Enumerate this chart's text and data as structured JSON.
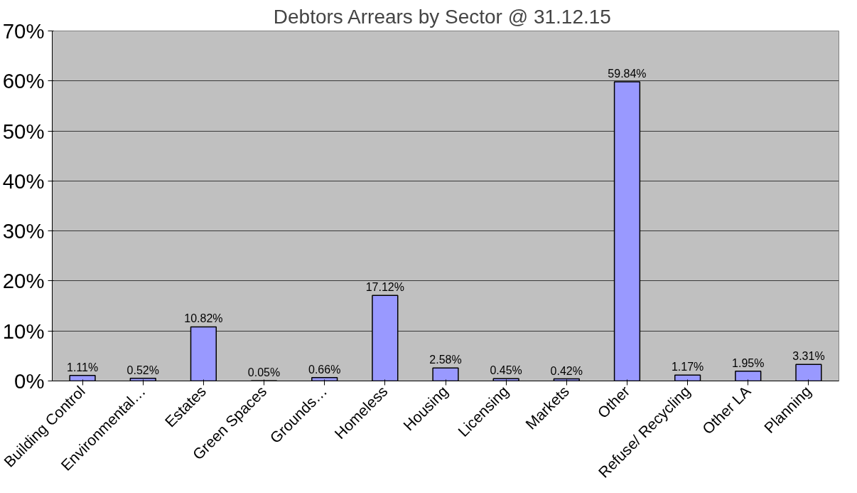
{
  "chart_data": {
    "type": "bar",
    "title": "Debtors Arrears by Sector @  31.12.15",
    "categories": [
      "Building Control",
      "Environmental…",
      "Estates",
      "Green Spaces",
      "Grounds…",
      "Homeless",
      "Housing",
      "Licensing",
      "Markets",
      "Other",
      "Refuse/ Recycling",
      "Other LA",
      "Planning"
    ],
    "values": [
      1.11,
      0.52,
      10.82,
      0.05,
      0.66,
      17.12,
      2.58,
      0.45,
      0.42,
      59.84,
      1.17,
      1.95,
      3.31
    ],
    "value_labels": [
      "1.11%",
      "0.52%",
      "10.82%",
      "0.05%",
      "0.66%",
      "17.12%",
      "2.58%",
      "0.45%",
      "0.42%",
      "59.84%",
      "1.17%",
      "1.95%",
      "3.31%"
    ],
    "color": "#9999ff",
    "ylim": [
      0,
      70
    ],
    "yticks": [
      {
        "value": 0,
        "label": "0%"
      },
      {
        "value": 10,
        "label": "10%"
      },
      {
        "value": 20,
        "label": "20%"
      },
      {
        "value": 30,
        "label": "30%"
      },
      {
        "value": 40,
        "label": "40%"
      },
      {
        "value": 50,
        "label": "50%"
      },
      {
        "value": 60,
        "label": "60%"
      },
      {
        "value": 70,
        "label": "70%"
      }
    ],
    "grid": "y"
  }
}
